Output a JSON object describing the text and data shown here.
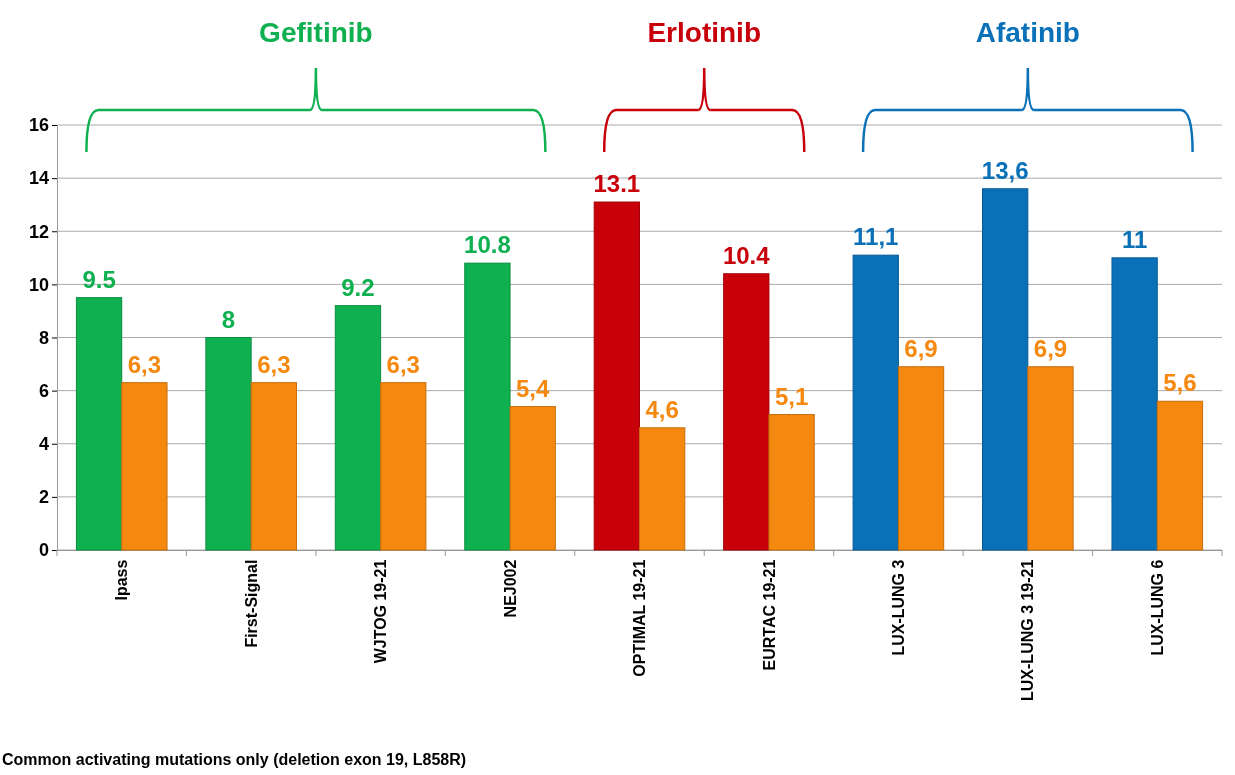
{
  "chart_data": {
    "type": "bar",
    "categories": [
      "Ipass",
      "First-Signal",
      "WJTOG 19-21",
      "NEJ002",
      "OPTIMAL 19-21",
      "EURTAC 19-21",
      "LUX-LUNG 3",
      "LUX-LUNG 3 19-21",
      "LUX-LUNG 6"
    ],
    "series": [
      {
        "colors": [
          "#0fb050",
          "#0fb050",
          "#0fb050",
          "#0fb050",
          "#c8000a",
          "#c8000a",
          "#0a70b8",
          "#0a70b8",
          "#0a70b8"
        ],
        "values": [
          9.5,
          8,
          9.2,
          10.8,
          13.1,
          10.4,
          11.1,
          13.6,
          11
        ],
        "value_labels": [
          "9.5",
          "8",
          "9.2",
          "10.8",
          "13.1",
          "10.4",
          "11,1",
          "13,6",
          "11"
        ]
      },
      {
        "color": "#f5880f",
        "values": [
          6.3,
          6.3,
          6.3,
          5.4,
          4.6,
          5.1,
          6.9,
          6.9,
          5.6
        ],
        "value_labels": [
          "6,3",
          "6,3",
          "6,3",
          "5,4",
          "4,6",
          "5,1",
          "6,9",
          "6,9",
          "5,6"
        ]
      }
    ],
    "ylim": [
      0,
      16
    ],
    "yticks": [
      0,
      2,
      4,
      6,
      8,
      10,
      12,
      14,
      16
    ],
    "grid": "y",
    "annotations": [
      "Gefitinib",
      "Erlotinib",
      "Afatinib",
      "Common activating mutations only (deletion exon 19, L858R)"
    ]
  }
}
